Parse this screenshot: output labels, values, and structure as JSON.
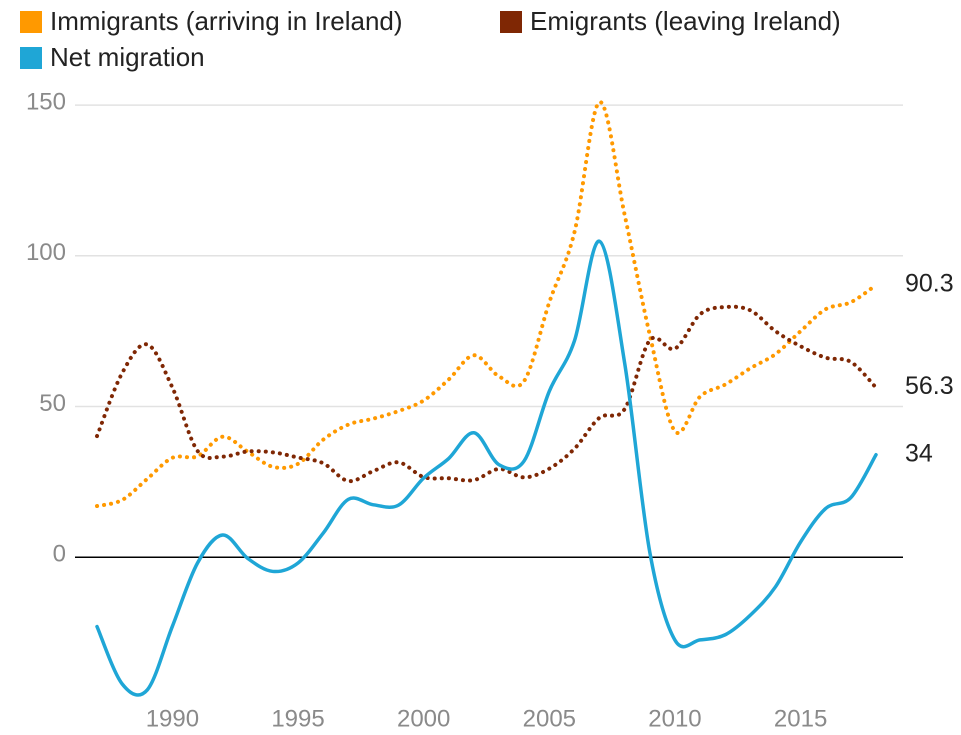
{
  "chart_data": {
    "type": "line",
    "x": [
      1987,
      1988,
      1989,
      1990,
      1991,
      1992,
      1993,
      1994,
      1995,
      1996,
      1997,
      1998,
      1999,
      2000,
      2001,
      2002,
      2003,
      2004,
      2005,
      2006,
      2007,
      2008,
      2009,
      2010,
      2011,
      2012,
      2013,
      2014,
      2015,
      2016,
      2017,
      2018
    ],
    "series": [
      {
        "name": "Immigrants (arriving in Ireland)",
        "color": "#ff9900",
        "dotted": true,
        "values": [
          17,
          19,
          26,
          33,
          33.5,
          40,
          35,
          30,
          31,
          39,
          44,
          46,
          48.5,
          52,
          59,
          67,
          60,
          58.5,
          84.6,
          107.8,
          151,
          113.5,
          73.7,
          41.8,
          53.3,
          57.3,
          62.7,
          67.4,
          75,
          82.3,
          84.6,
          90.3
        ]
      },
      {
        "name": "Emigrants (leaving Ireland)",
        "color": "#7f2704",
        "dotted": true,
        "values": [
          40.2,
          61.1,
          70.6,
          56.3,
          35.3,
          33.4,
          35.1,
          34.8,
          33.1,
          31.2,
          25.3,
          28.6,
          31.5,
          26.6,
          26.2,
          25.6,
          29.3,
          26.5,
          29.4,
          36,
          46.3,
          49.2,
          72,
          69.2,
          80.6,
          83,
          81.9,
          75,
          70,
          66.2,
          64.8,
          56.3
        ]
      },
      {
        "name": "Net migration",
        "color": "#1fa6d6",
        "dotted": false,
        "values": [
          -23,
          -42,
          -44,
          -22.9,
          -1.9,
          7.4,
          -0.4,
          -4.7,
          -1.9,
          8,
          19.2,
          17.4,
          17.3,
          26.3,
          32.8,
          41.3,
          30.7,
          32,
          55.1,
          71.8,
          104.8,
          64.3,
          1.6,
          -27.5,
          -27.4,
          -25.7,
          -19.2,
          -9.8,
          5.1,
          16.2,
          19.8,
          34
        ]
      }
    ],
    "xlim": [
      1987,
      2018
    ],
    "xticks": [
      1990,
      1995,
      2000,
      2005,
      2010,
      2015
    ],
    "ylim": [
      -50,
      155
    ],
    "yticks": [
      0,
      50,
      100,
      150
    ],
    "grid": true
  }
}
